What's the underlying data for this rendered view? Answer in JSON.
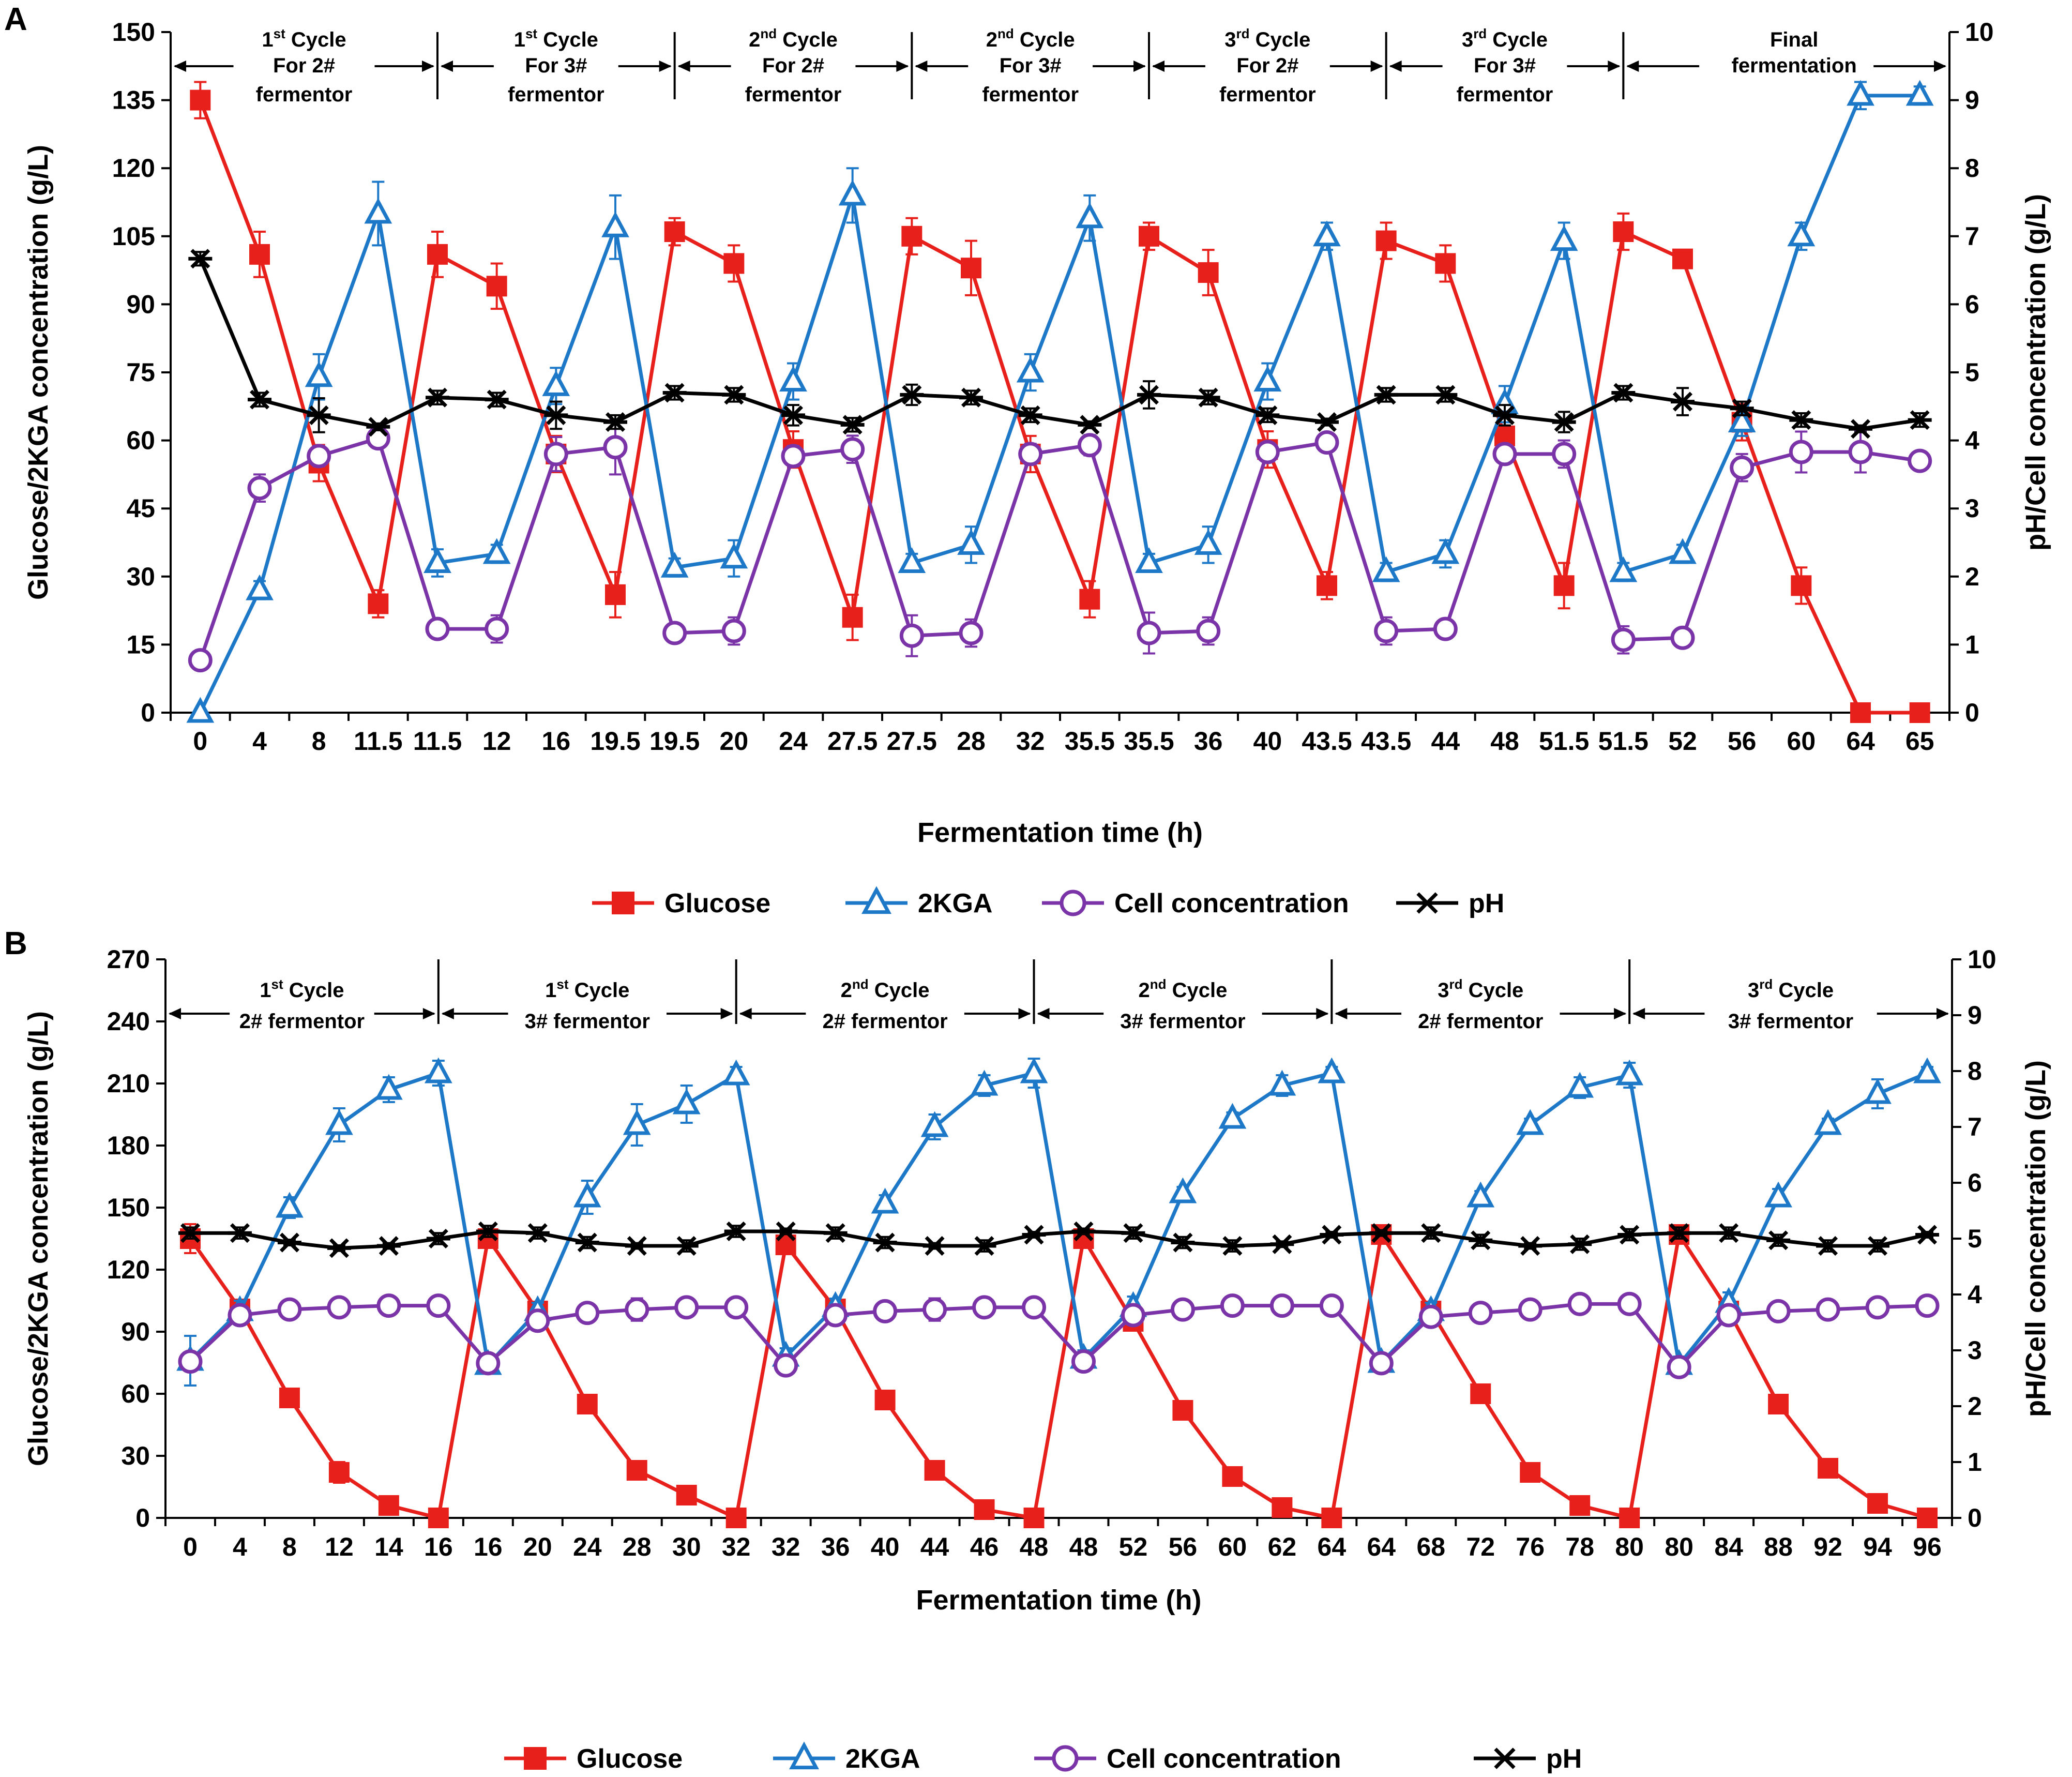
{
  "legend": [
    {
      "key": "glucose",
      "label": "Glucose",
      "color": "#e8201c",
      "marker": "square-filled"
    },
    {
      "key": "kga",
      "label": "2KGA",
      "color": "#1e78c8",
      "marker": "triangle-open"
    },
    {
      "key": "cell",
      "label": "Cell concentration",
      "color": "#7b34a8",
      "marker": "circle-open"
    },
    {
      "key": "ph",
      "label": "pH",
      "color": "#000000",
      "marker": "asterisk"
    }
  ],
  "chart_data": [
    {
      "panel": "A",
      "type": "line",
      "xlabel": "Fermentation time (h)",
      "ylabel": "Glucose/2KGA concentration (g/L)",
      "y2label": "pH/Cell concentration (g/L)",
      "ylim": [
        0,
        150
      ],
      "yticks": [
        0,
        15,
        30,
        45,
        60,
        75,
        90,
        105,
        120,
        135,
        150
      ],
      "y2lim": [
        0,
        10
      ],
      "y2ticks": [
        0,
        1,
        2,
        3,
        4,
        5,
        6,
        7,
        8,
        9,
        10
      ],
      "categories": [
        "0",
        "4",
        "8",
        "11.5",
        "11.5",
        "12",
        "16",
        "19.5",
        "19.5",
        "20",
        "24",
        "27.5",
        "27.5",
        "28",
        "32",
        "35.5",
        "35.5",
        "36",
        "40",
        "43.5",
        "43.5",
        "44",
        "48",
        "51.5",
        "51.5",
        "52",
        "56",
        "60",
        "64",
        "65"
      ],
      "dividers": [
        4.5,
        8.5,
        12.5,
        16.5,
        20.5,
        24.5
      ],
      "cycles": [
        {
          "sup": "st",
          "text": "Cycle",
          "lines": [
            "For 2#",
            "fermentor"
          ],
          "num": "1"
        },
        {
          "sup": "st",
          "text": "Cycle",
          "lines": [
            "For 3#",
            "fermentor"
          ],
          "num": "1"
        },
        {
          "sup": "nd",
          "text": "Cycle",
          "lines": [
            "For 2#",
            "fermentor"
          ],
          "num": "2"
        },
        {
          "sup": "nd",
          "text": "Cycle",
          "lines": [
            "For 3#",
            "fermentor"
          ],
          "num": "2"
        },
        {
          "sup": "rd",
          "text": "Cycle",
          "lines": [
            "For 2#",
            "fermentor"
          ],
          "num": "3"
        },
        {
          "sup": "rd",
          "text": "Cycle",
          "lines": [
            "For 3#",
            "fermentor"
          ],
          "num": "3"
        },
        {
          "sup": "",
          "text": "",
          "lines": [
            "Final",
            "fermentation"
          ],
          "num": ""
        }
      ],
      "series": [
        {
          "key": "glucose",
          "name": "Glucose",
          "axis": "left",
          "values": [
            135,
            101,
            55,
            24,
            101,
            94,
            57,
            26,
            106,
            99,
            58,
            21,
            105,
            98,
            57,
            25,
            105,
            97,
            58,
            28,
            104,
            99,
            61,
            28,
            106,
            100,
            64,
            28,
            0,
            0
          ],
          "errors": [
            4,
            5,
            4,
            3,
            5,
            5,
            4,
            5,
            3,
            4,
            4,
            5,
            4,
            6,
            4,
            4,
            3,
            5,
            4,
            3,
            4,
            4,
            4,
            5,
            4,
            2,
            4,
            4,
            0,
            0
          ]
        },
        {
          "key": "kga",
          "name": "2KGA",
          "axis": "left",
          "values": [
            0,
            27,
            74,
            110,
            33,
            35,
            72,
            107,
            32,
            34,
            73,
            114,
            33,
            37,
            75,
            109,
            33,
            37,
            73,
            105,
            31,
            35,
            68,
            104,
            31,
            35,
            64,
            105,
            136,
            136
          ],
          "errors": [
            0,
            2,
            5,
            7,
            3,
            2,
            4,
            7,
            2,
            4,
            4,
            6,
            2,
            4,
            4,
            5,
            2,
            4,
            4,
            3,
            2,
            3,
            4,
            4,
            2,
            2,
            3,
            3,
            3,
            2
          ]
        },
        {
          "key": "cell",
          "name": "Cell concentration",
          "axis": "right",
          "values": [
            0.77,
            3.3,
            3.77,
            4.03,
            1.23,
            1.23,
            3.8,
            3.9,
            1.17,
            1.2,
            3.77,
            3.87,
            1.13,
            1.17,
            3.8,
            3.93,
            1.17,
            1.2,
            3.83,
            3.97,
            1.2,
            1.23,
            3.8,
            3.8,
            1.07,
            1.1,
            3.6,
            3.83,
            3.83,
            3.7
          ],
          "errors": [
            0.1,
            0.2,
            0.15,
            0.1,
            0.05,
            0.2,
            0.25,
            0.4,
            0.1,
            0.2,
            0.15,
            0.2,
            0.3,
            0.2,
            0.15,
            0.15,
            0.3,
            0.2,
            0.1,
            0.1,
            0.2,
            0.1,
            0.1,
            0.2,
            0.2,
            0.05,
            0.2,
            0.3,
            0.3,
            0.05
          ]
        },
        {
          "key": "ph",
          "name": "pH",
          "axis": "right",
          "values": [
            6.67,
            4.6,
            4.37,
            4.2,
            4.63,
            4.6,
            4.37,
            4.27,
            4.7,
            4.67,
            4.37,
            4.23,
            4.67,
            4.63,
            4.37,
            4.23,
            4.67,
            4.63,
            4.37,
            4.27,
            4.67,
            4.67,
            4.37,
            4.27,
            4.7,
            4.57,
            4.47,
            4.3,
            4.17,
            4.3
          ],
          "errors": [
            0.1,
            0.1,
            0.25,
            0.05,
            0.1,
            0.1,
            0.2,
            0.1,
            0.1,
            0.1,
            0.15,
            0.1,
            0.15,
            0.1,
            0.1,
            0.05,
            0.2,
            0.1,
            0.1,
            0.05,
            0.1,
            0.1,
            0.15,
            0.15,
            0.1,
            0.2,
            0.1,
            0.1,
            0.05,
            0.1
          ]
        }
      ]
    },
    {
      "panel": "B",
      "type": "line",
      "xlabel": "Fermentation time (h)",
      "ylabel": "Glucose/2KGA concentration (g/L)",
      "y2label": "pH/Cell concentration (g/L)",
      "ylim": [
        0,
        270
      ],
      "yticks": [
        0,
        30,
        60,
        90,
        120,
        150,
        180,
        210,
        240,
        270
      ],
      "y2lim": [
        0,
        10
      ],
      "y2ticks": [
        0,
        1,
        2,
        3,
        4,
        5,
        6,
        7,
        8,
        9,
        10
      ],
      "categories": [
        "0",
        "4",
        "8",
        "12",
        "14",
        "16",
        "16",
        "20",
        "24",
        "28",
        "30",
        "32",
        "32",
        "36",
        "40",
        "44",
        "46",
        "48",
        "48",
        "52",
        "56",
        "60",
        "62",
        "64",
        "64",
        "68",
        "72",
        "76",
        "78",
        "80",
        "80",
        "84",
        "88",
        "92",
        "94",
        "96"
      ],
      "dividers": [
        5.5,
        11.5,
        17.5,
        23.5,
        29.5
      ],
      "cycles": [
        {
          "num": "1",
          "sup": "st",
          "text": "Cycle",
          "lines": [
            "2# fermentor"
          ]
        },
        {
          "num": "1",
          "sup": "st",
          "text": "Cycle",
          "lines": [
            "3# fermentor"
          ]
        },
        {
          "num": "2",
          "sup": "nd",
          "text": "Cycle",
          "lines": [
            "2# fermentor"
          ]
        },
        {
          "num": "2",
          "sup": "nd",
          "text": "Cycle",
          "lines": [
            "3# fermentor"
          ]
        },
        {
          "num": "3",
          "sup": "rd",
          "text": "Cycle",
          "lines": [
            "2# fermentor"
          ]
        },
        {
          "num": "3",
          "sup": "rd",
          "text": "Cycle",
          "lines": [
            "3# fermentor"
          ]
        }
      ],
      "series": [
        {
          "key": "glucose",
          "name": "Glucose",
          "axis": "left",
          "values": [
            135,
            101,
            58,
            22,
            6,
            0,
            135,
            100,
            55,
            23,
            11,
            0,
            132,
            101,
            57,
            23,
            4,
            0,
            135,
            95,
            52,
            20,
            5,
            0,
            137,
            100,
            60,
            22,
            6,
            0,
            137,
            100,
            55,
            24,
            7,
            0
          ],
          "errors": [
            7,
            3,
            4,
            5,
            2,
            0,
            4,
            3,
            3,
            2,
            2,
            0,
            3,
            3,
            3,
            4,
            2,
            0,
            3,
            3,
            3,
            2,
            2,
            0,
            2,
            3,
            2,
            2,
            2,
            0,
            4,
            3,
            2,
            2,
            2,
            0
          ],
          "x_index": [
            0,
            1,
            2,
            3,
            4,
            5,
            6,
            7,
            8,
            9,
            10,
            11,
            12,
            13,
            14,
            15,
            16,
            17,
            18,
            19,
            20,
            21,
            22,
            23,
            24,
            25,
            26,
            27,
            28,
            29,
            30,
            31,
            32,
            33,
            34,
            35
          ]
        },
        {
          "key": "kga",
          "name": "2KGA",
          "axis": "left",
          "values": [
            76,
            100,
            150,
            190,
            207,
            215,
            74,
            100,
            155,
            190,
            200,
            214,
            78,
            102,
            152,
            189,
            209,
            215,
            77,
            102,
            157,
            193,
            209,
            215,
            75,
            100,
            155,
            190,
            208,
            214,
            74,
            104,
            155,
            190,
            205,
            215
          ],
          "errors": [
            12,
            5,
            5,
            8,
            6,
            6,
            4,
            4,
            8,
            10,
            9,
            4,
            4,
            4,
            4,
            6,
            5,
            7,
            4,
            5,
            3,
            3,
            5,
            3,
            3,
            4,
            3,
            3,
            5,
            6,
            4,
            5,
            4,
            3,
            7,
            3
          ],
          "x_index": [
            0,
            1,
            2,
            3,
            4,
            5,
            6,
            7,
            8,
            9,
            10,
            11,
            12,
            13,
            14,
            15,
            16,
            17,
            18,
            19,
            20,
            21,
            22,
            23,
            24,
            25,
            26,
            27,
            28,
            29,
            30,
            31,
            32,
            33,
            34,
            35
          ]
        },
        {
          "key": "cell",
          "name": "Cell concentration",
          "axis": "right",
          "values": [
            2.8,
            3.63,
            3.73,
            3.77,
            3.8,
            3.8,
            2.77,
            3.53,
            3.67,
            3.73,
            3.77,
            3.77,
            2.73,
            3.63,
            3.7,
            3.73,
            3.77,
            3.77,
            2.8,
            3.63,
            3.73,
            3.8,
            3.8,
            3.8,
            2.77,
            3.6,
            3.67,
            3.73,
            3.83,
            3.83,
            2.7,
            3.63,
            3.7,
            3.73,
            3.77,
            3.8
          ],
          "errors": [
            0.1,
            0.1,
            0.15,
            0.1,
            0.15,
            0.05,
            0.1,
            0.1,
            0.1,
            0.2,
            0.15,
            0.1,
            0.1,
            0.1,
            0.1,
            0.2,
            0.1,
            0.05,
            0.1,
            0.05,
            0.05,
            0.1,
            0.1,
            0.05,
            0.1,
            0.05,
            0.05,
            0.1,
            0.15,
            0.1,
            0.15,
            0.05,
            0.1,
            0.1,
            0.1,
            0.1
          ],
          "x_index": [
            0,
            1,
            2,
            3,
            4,
            5,
            6,
            7,
            8,
            9,
            10,
            11,
            12,
            13,
            14,
            15,
            16,
            17,
            18,
            19,
            20,
            21,
            22,
            23,
            24,
            25,
            26,
            27,
            28,
            29,
            30,
            31,
            32,
            33,
            34,
            35
          ]
        },
        {
          "key": "ph",
          "name": "pH",
          "axis": "right",
          "values": [
            5.1,
            5.1,
            4.93,
            4.83,
            4.87,
            5.0,
            5.13,
            5.1,
            4.93,
            4.87,
            4.87,
            5.13,
            5.13,
            5.1,
            4.93,
            4.87,
            4.87,
            5.07,
            5.13,
            5.1,
            4.93,
            4.87,
            4.9,
            5.07,
            5.1,
            5.1,
            4.97,
            4.87,
            4.9,
            5.07,
            5.1,
            5.1,
            4.97,
            4.87,
            4.87,
            5.07
          ],
          "errors": [
            0.1,
            0.1,
            0.05,
            0.05,
            0.05,
            0.1,
            0.1,
            0.1,
            0.1,
            0.05,
            0.1,
            0.1,
            0.05,
            0.1,
            0.1,
            0.05,
            0.1,
            0.05,
            0.05,
            0.1,
            0.1,
            0.1,
            0.05,
            0.05,
            0.05,
            0.1,
            0.1,
            0.05,
            0.1,
            0.1,
            0.1,
            0.1,
            0.1,
            0.1,
            0.1,
            0.05
          ],
          "x_index": [
            0,
            1,
            2,
            3,
            4,
            5,
            6,
            7,
            8,
            9,
            10,
            11,
            12,
            13,
            14,
            15,
            16,
            17,
            18,
            19,
            20,
            21,
            22,
            23,
            24,
            25,
            26,
            27,
            28,
            29,
            30,
            31,
            32,
            33,
            34,
            35
          ]
        }
      ]
    }
  ]
}
